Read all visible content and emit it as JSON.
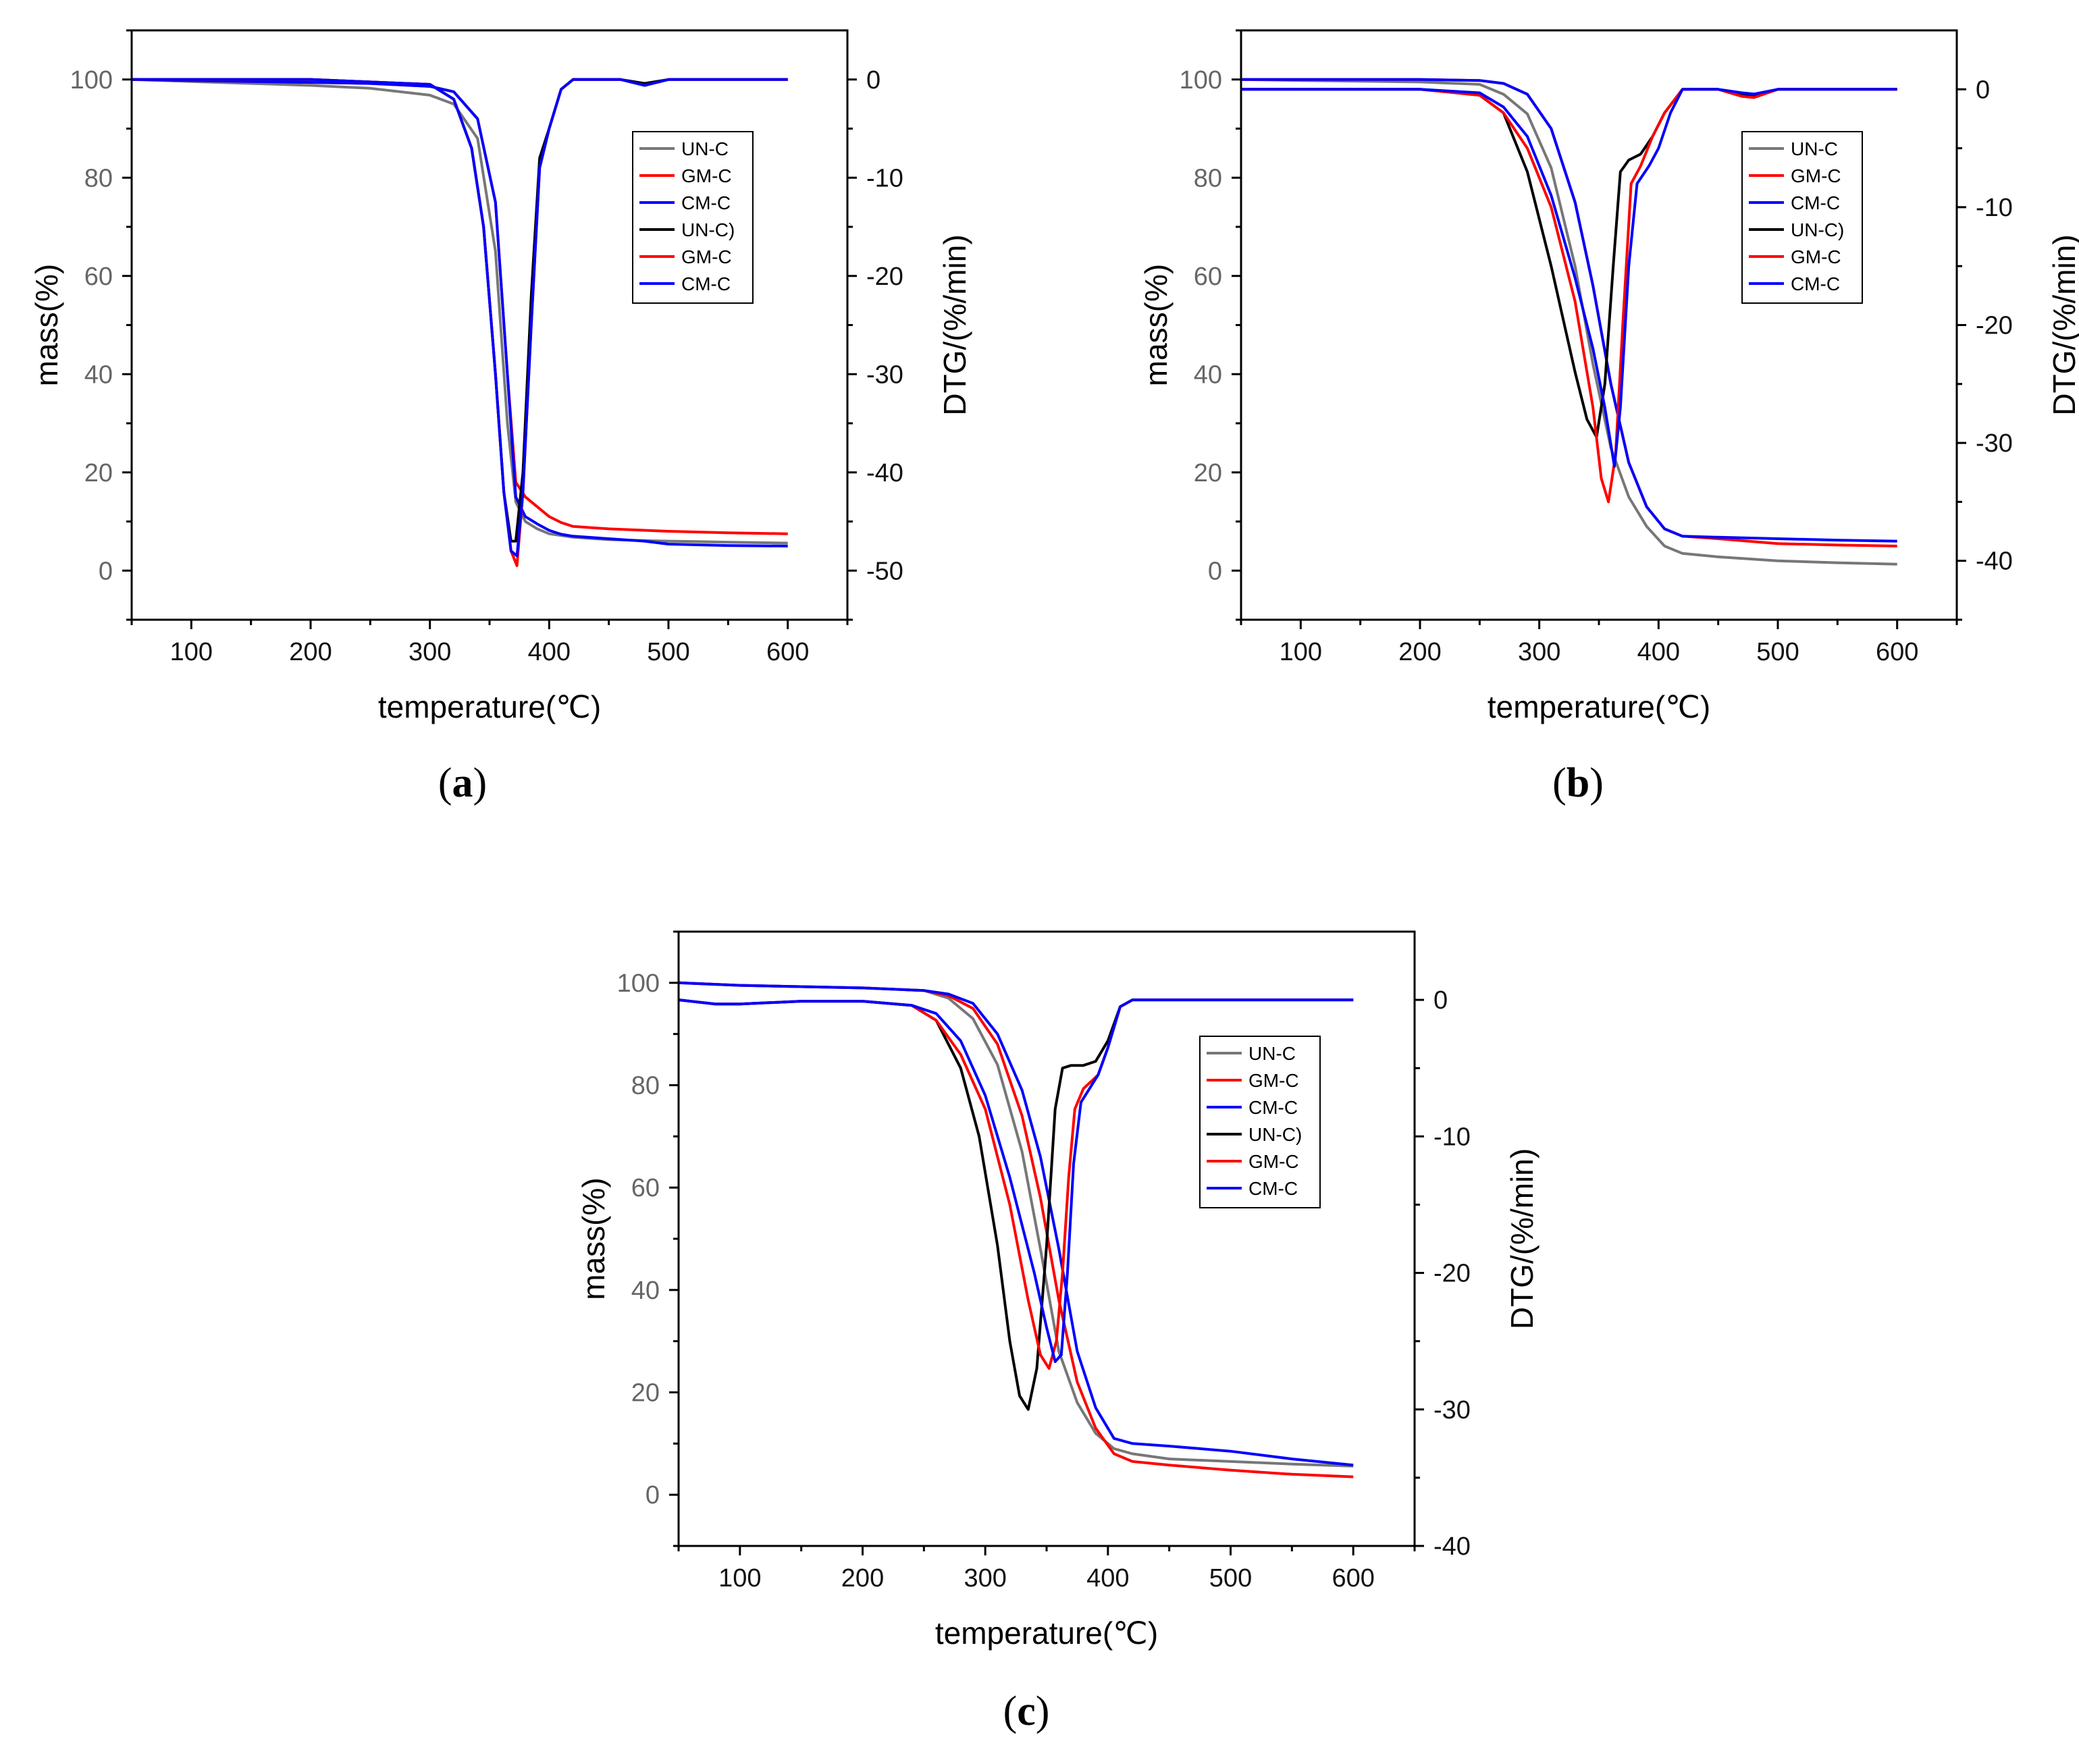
{
  "figure": {
    "panels": [
      "a",
      "b",
      "c"
    ]
  },
  "chart_data": [
    {
      "panel_label": "a",
      "type": "line",
      "xlabel": "temperature(℃)",
      "ylabel_left": "mass(%)",
      "ylabel_right": "DTG/(%/min)",
      "xlim": [
        50,
        650
      ],
      "ylim_left": [
        -10,
        110
      ],
      "ylim_right": [
        -55,
        5
      ],
      "x_ticks": [
        100,
        200,
        300,
        400,
        500,
        600
      ],
      "y_ticks_left": [
        0,
        20,
        40,
        60,
        80,
        100
      ],
      "y_ticks_right": [
        0,
        -10,
        -20,
        -30,
        -40,
        -50
      ],
      "legend": {
        "position": "top-right",
        "entries": [
          "UN-C",
          "GM-C",
          "CM-C",
          "UN-C)",
          "GM-C",
          "CM-C"
        ]
      },
      "series": [
        {
          "name": "UN-C",
          "axis": "left",
          "color": "#777777",
          "x": [
            50,
            100,
            150,
            200,
            250,
            300,
            320,
            340,
            355,
            365,
            372,
            380,
            390,
            400,
            420,
            450,
            500,
            550,
            600
          ],
          "values": [
            100,
            99.6,
            99.2,
            98.8,
            98.2,
            96.8,
            95,
            88,
            65,
            30,
            14,
            10,
            8.5,
            7.5,
            6.8,
            6.3,
            6,
            5.8,
            5.6
          ]
        },
        {
          "name": "GM-C",
          "axis": "left",
          "color": "#ff0000",
          "x": [
            50,
            100,
            150,
            200,
            250,
            300,
            320,
            340,
            355,
            365,
            372,
            380,
            390,
            400,
            410,
            420,
            450,
            500,
            550,
            600
          ],
          "values": [
            100,
            99.8,
            99.6,
            99.4,
            99.2,
            98.6,
            97.5,
            92,
            75,
            40,
            18,
            15,
            13,
            11,
            9.8,
            9,
            8.5,
            8,
            7.7,
            7.5
          ]
        },
        {
          "name": "CM-C",
          "axis": "left",
          "color": "#0000ff",
          "x": [
            50,
            100,
            150,
            200,
            250,
            300,
            320,
            340,
            355,
            365,
            372,
            380,
            390,
            400,
            410,
            420,
            450,
            480,
            500,
            550,
            600
          ],
          "values": [
            100,
            99.8,
            99.6,
            99.4,
            99.2,
            98.6,
            97.5,
            92,
            75,
            40,
            15,
            11,
            9.5,
            8.2,
            7.4,
            7,
            6.5,
            6,
            5.4,
            5.1,
            5
          ]
        },
        {
          "name": "UN-C)",
          "axis": "right",
          "color": "#000000",
          "x": [
            50,
            100,
            200,
            300,
            320,
            335,
            345,
            355,
            362,
            368,
            372,
            378,
            385,
            392,
            400,
            410,
            420,
            460,
            480,
            500,
            600
          ],
          "values": [
            0,
            0,
            0,
            -0.5,
            -2,
            -7,
            -15,
            -30,
            -42,
            -47,
            -47,
            -40,
            -22,
            -8,
            -5,
            -1,
            0,
            0,
            -0.4,
            0,
            0
          ]
        },
        {
          "name": "GM-C",
          "axis": "right",
          "color": "#ff0000",
          "x": [
            50,
            100,
            200,
            300,
            320,
            335,
            345,
            355,
            362,
            368,
            373,
            378,
            385,
            392,
            400,
            410,
            420,
            460,
            480,
            500,
            600
          ],
          "values": [
            0,
            0,
            0,
            -0.5,
            -2,
            -7,
            -15,
            -30,
            -42,
            -48,
            -49.5,
            -42,
            -25,
            -9,
            -5,
            -1,
            0,
            0,
            -0.6,
            0,
            0
          ]
        },
        {
          "name": "CM-C",
          "axis": "right",
          "color": "#0000ff",
          "x": [
            50,
            100,
            200,
            300,
            320,
            335,
            345,
            355,
            362,
            368,
            373,
            378,
            385,
            392,
            400,
            410,
            420,
            460,
            480,
            500,
            600
          ],
          "values": [
            0,
            0,
            0,
            -0.5,
            -2,
            -7,
            -15,
            -30,
            -42,
            -48,
            -48.5,
            -42,
            -25,
            -9,
            -5,
            -1,
            0,
            0,
            -0.6,
            0,
            0
          ]
        }
      ]
    },
    {
      "panel_label": "b",
      "type": "line",
      "xlabel": "temperature(℃)",
      "ylabel_left": "mass(%)",
      "ylabel_right": "DTG/(%/min)",
      "xlim": [
        50,
        650
      ],
      "ylim_left": [
        -10,
        110
      ],
      "ylim_right": [
        -45,
        5
      ],
      "x_ticks": [
        100,
        200,
        300,
        400,
        500,
        600
      ],
      "y_ticks_left": [
        0,
        20,
        40,
        60,
        80,
        100
      ],
      "y_ticks_right": [
        0,
        -10,
        -20,
        -30,
        -40
      ],
      "legend": {
        "position": "top-right",
        "entries": [
          "UN-C",
          "GM-C",
          "CM-C",
          "UN-C)",
          "GM-C",
          "CM-C"
        ]
      },
      "series": [
        {
          "name": "UN-C",
          "axis": "left",
          "color": "#777777",
          "x": [
            50,
            100,
            200,
            250,
            270,
            290,
            310,
            330,
            345,
            360,
            375,
            390,
            405,
            420,
            450,
            500,
            550,
            600
          ],
          "values": [
            100,
            99.8,
            99.5,
            99,
            97,
            93,
            82,
            62,
            42,
            25,
            15,
            9,
            5,
            3.5,
            2.8,
            2,
            1.6,
            1.3
          ]
        },
        {
          "name": "GM-C",
          "axis": "left",
          "color": "#ff0000",
          "x": [
            50,
            100,
            200,
            250,
            270,
            290,
            310,
            330,
            345,
            360,
            375,
            390,
            405,
            420,
            450,
            500,
            550,
            600
          ],
          "values": [
            100,
            100,
            100,
            99.8,
            99.2,
            97,
            90,
            75,
            58,
            38,
            22,
            13,
            8.5,
            7,
            6.5,
            5.5,
            5.2,
            5
          ]
        },
        {
          "name": "CM-C",
          "axis": "left",
          "color": "#0000ff",
          "x": [
            50,
            100,
            200,
            250,
            270,
            290,
            310,
            330,
            345,
            360,
            375,
            390,
            405,
            420,
            450,
            500,
            550,
            600
          ],
          "values": [
            100,
            100,
            100,
            99.8,
            99.2,
            97,
            90,
            75,
            58,
            38,
            22,
            13,
            8.5,
            7,
            6.8,
            6.5,
            6.2,
            6
          ]
        },
        {
          "name": "UN-C)",
          "axis": "right",
          "color": "#000000",
          "x": [
            50,
            100,
            200,
            250,
            270,
            290,
            310,
            330,
            340,
            348,
            355,
            362,
            368,
            375,
            385,
            395,
            405,
            420,
            450,
            470,
            480,
            500,
            600
          ],
          "values": [
            0,
            0,
            0,
            -0.5,
            -2,
            -7,
            -15,
            -24,
            -28,
            -29.5,
            -25,
            -15,
            -7,
            -6,
            -5.5,
            -4,
            -2,
            0,
            0,
            -0.5,
            -0.6,
            0,
            0
          ]
        },
        {
          "name": "GM-C",
          "axis": "right",
          "color": "#ff0000",
          "x": [
            50,
            100,
            200,
            250,
            270,
            290,
            310,
            330,
            345,
            352,
            358,
            364,
            370,
            377,
            385,
            395,
            405,
            420,
            450,
            470,
            480,
            500,
            600
          ],
          "values": [
            0,
            0,
            0,
            -0.5,
            -2,
            -5,
            -10,
            -18,
            -27,
            -33,
            -35,
            -31,
            -20,
            -8,
            -6.5,
            -4,
            -2,
            0,
            0,
            -0.6,
            -0.7,
            0,
            0
          ]
        },
        {
          "name": "CM-C",
          "axis": "right",
          "color": "#0000ff",
          "x": [
            50,
            100,
            200,
            250,
            270,
            290,
            310,
            330,
            345,
            355,
            363,
            368,
            375,
            382,
            392,
            400,
            410,
            420,
            450,
            470,
            480,
            500,
            600
          ],
          "values": [
            0,
            0,
            0,
            -0.3,
            -1.5,
            -4,
            -9,
            -16,
            -22,
            -27,
            -32,
            -27,
            -15,
            -8,
            -6.5,
            -5,
            -2,
            0,
            0,
            -0.3,
            -0.4,
            0,
            0
          ]
        }
      ]
    },
    {
      "panel_label": "c",
      "type": "line",
      "xlabel": "temperature(℃)",
      "ylabel_left": "mass(%)",
      "ylabel_right": "DTG/(%/min)",
      "xlim": [
        50,
        650
      ],
      "ylim_left": [
        -10,
        110
      ],
      "ylim_right": [
        -40,
        5
      ],
      "x_ticks": [
        100,
        200,
        300,
        400,
        500,
        600
      ],
      "y_ticks_left": [
        0,
        20,
        40,
        60,
        80,
        100
      ],
      "y_ticks_right": [
        0,
        -10,
        -20,
        -30,
        -40
      ],
      "legend": {
        "position": "top-right",
        "entries": [
          "UN-C",
          "GM-C",
          "CM-C",
          "UN-C)",
          "GM-C",
          "CM-C"
        ]
      },
      "series": [
        {
          "name": "UN-C",
          "axis": "left",
          "color": "#777777",
          "x": [
            50,
            100,
            200,
            250,
            270,
            290,
            310,
            330,
            345,
            360,
            375,
            390,
            405,
            420,
            450,
            500,
            550,
            600
          ],
          "values": [
            100,
            99.5,
            99,
            98.5,
            97,
            93,
            84,
            67,
            48,
            28,
            18,
            12,
            9,
            8,
            7,
            6.5,
            6,
            5.6
          ]
        },
        {
          "name": "GM-C",
          "axis": "left",
          "color": "#ff0000",
          "x": [
            50,
            100,
            200,
            250,
            270,
            290,
            310,
            330,
            345,
            360,
            375,
            390,
            405,
            420,
            450,
            500,
            550,
            600
          ],
          "values": [
            100,
            99.5,
            99,
            98.5,
            97.5,
            95,
            88,
            74,
            58,
            38,
            22,
            13,
            8,
            6.5,
            5.8,
            4.8,
            4,
            3.5
          ]
        },
        {
          "name": "CM-C",
          "axis": "left",
          "color": "#0000ff",
          "x": [
            50,
            100,
            200,
            250,
            270,
            290,
            310,
            330,
            345,
            360,
            375,
            390,
            405,
            420,
            450,
            500,
            550,
            600
          ],
          "values": [
            100,
            99.5,
            99,
            98.5,
            97.8,
            96,
            90,
            79,
            66,
            48,
            28,
            17,
            11,
            10,
            9.5,
            8.5,
            7,
            5.8
          ]
        },
        {
          "name": "UN-C)",
          "axis": "right",
          "color": "#000000",
          "x": [
            50,
            80,
            100,
            150,
            200,
            240,
            260,
            280,
            295,
            310,
            320,
            328,
            335,
            342,
            350,
            357,
            363,
            370,
            380,
            390,
            400,
            410,
            420,
            450,
            500,
            550,
            600
          ],
          "values": [
            0,
            -0.3,
            -0.3,
            -0.1,
            -0.1,
            -0.4,
            -1.5,
            -5,
            -10,
            -18,
            -25,
            -29,
            -30,
            -27,
            -18,
            -8,
            -5,
            -4.8,
            -4.8,
            -4.5,
            -3,
            -0.5,
            0,
            0,
            0,
            0,
            0
          ]
        },
        {
          "name": "GM-C",
          "axis": "right",
          "color": "#ff0000",
          "x": [
            50,
            80,
            100,
            150,
            200,
            240,
            260,
            280,
            300,
            320,
            335,
            345,
            352,
            358,
            363,
            368,
            373,
            380,
            392,
            400,
            410,
            420,
            450,
            500,
            550,
            600
          ],
          "values": [
            0,
            -0.3,
            -0.3,
            -0.1,
            -0.1,
            -0.4,
            -1.5,
            -4,
            -8,
            -15,
            -22,
            -26,
            -27,
            -25,
            -20,
            -13,
            -8,
            -6.5,
            -5.5,
            -3.5,
            -0.5,
            0,
            0,
            0,
            0,
            0
          ]
        },
        {
          "name": "CM-C",
          "axis": "right",
          "color": "#0000ff",
          "x": [
            50,
            80,
            100,
            150,
            200,
            240,
            260,
            280,
            300,
            320,
            340,
            350,
            357,
            362,
            367,
            372,
            378,
            385,
            392,
            400,
            410,
            420,
            450,
            500,
            550,
            600
          ],
          "values": [
            0,
            -0.3,
            -0.3,
            -0.1,
            -0.1,
            -0.4,
            -1,
            -3,
            -7,
            -13,
            -20,
            -24,
            -26.5,
            -26,
            -20,
            -12,
            -7.5,
            -6.5,
            -5.5,
            -3.5,
            -0.5,
            0,
            0,
            0,
            0,
            0
          ]
        }
      ]
    }
  ]
}
